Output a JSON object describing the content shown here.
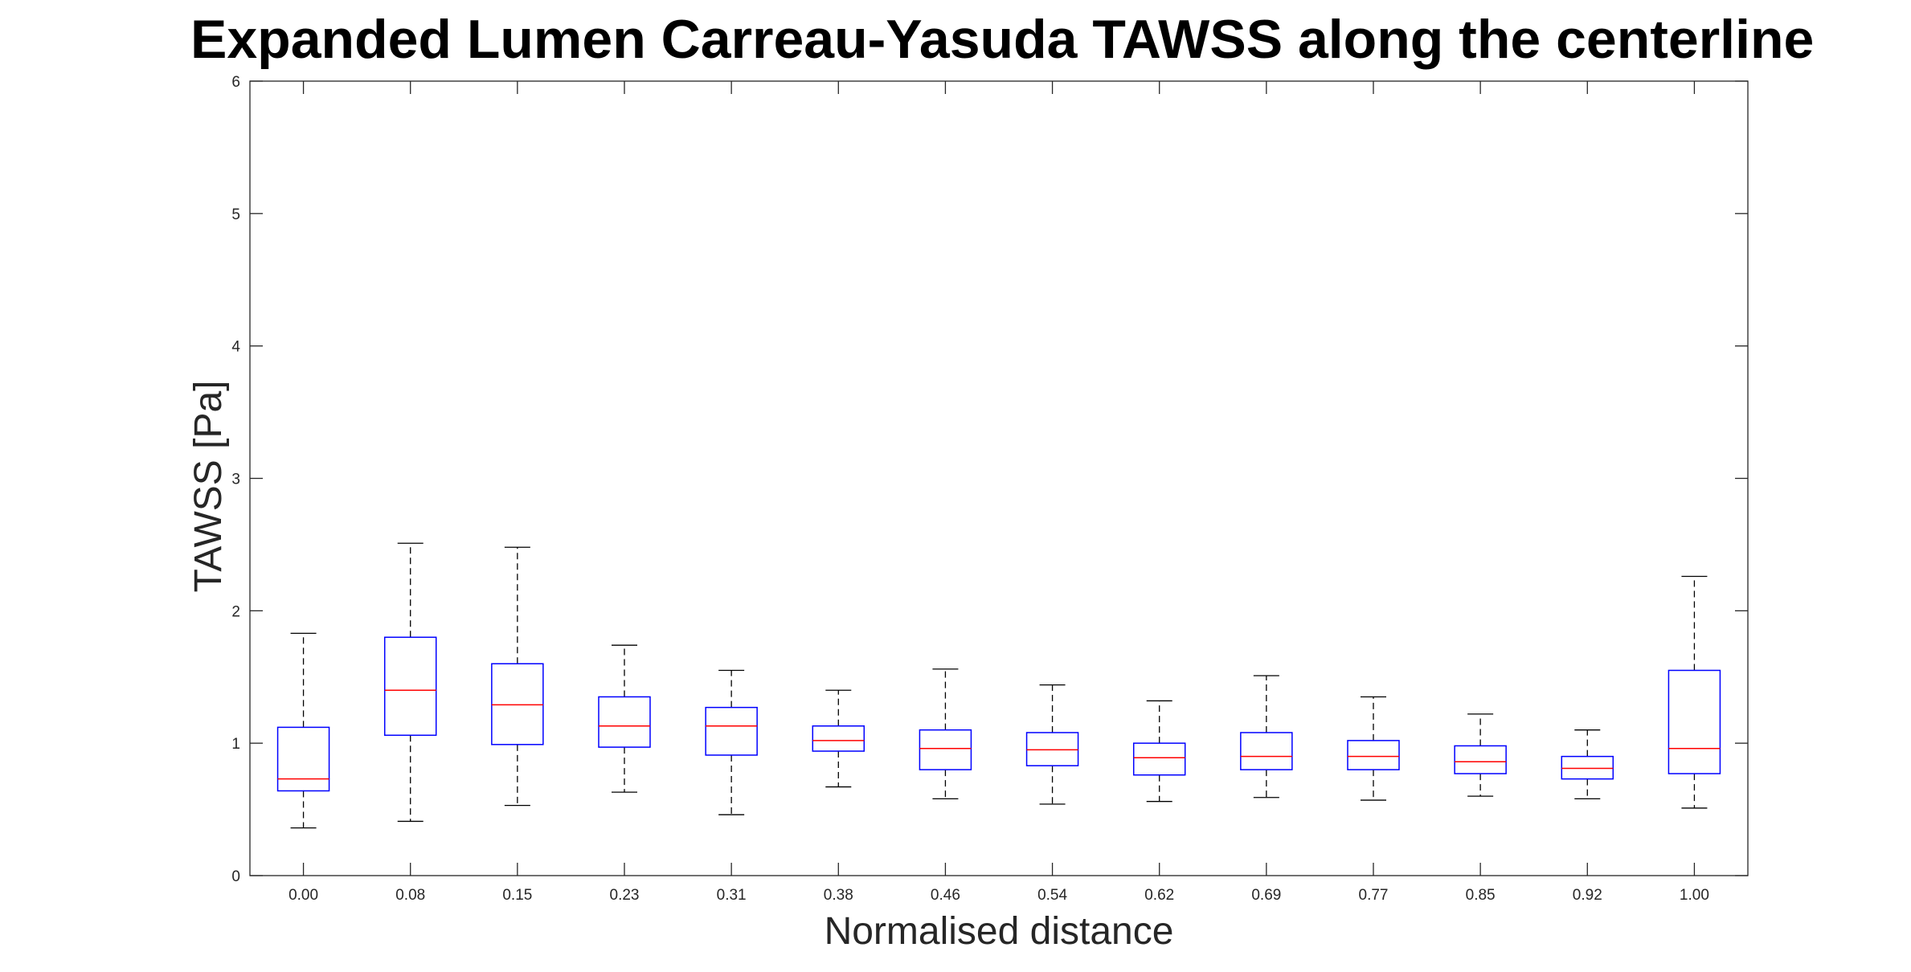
{
  "chart_data": {
    "type": "box",
    "title": "Expanded Lumen Carreau-Yasuda TAWSS along the centerline",
    "xlabel": "Normalised distance",
    "ylabel": "TAWSS [Pa]",
    "ylim": [
      0,
      6
    ],
    "yticks": [
      "0",
      "1",
      "2",
      "3",
      "4",
      "5",
      "6"
    ],
    "categories": [
      "0.00",
      "0.08",
      "0.15",
      "0.23",
      "0.31",
      "0.38",
      "0.46",
      "0.54",
      "0.62",
      "0.69",
      "0.77",
      "0.85",
      "0.92",
      "1.00"
    ],
    "boxes": [
      {
        "min": 0.36,
        "q1": 0.64,
        "median": 0.73,
        "q3": 1.12,
        "max": 1.83
      },
      {
        "min": 0.41,
        "q1": 1.06,
        "median": 1.4,
        "q3": 1.8,
        "max": 2.51
      },
      {
        "min": 0.53,
        "q1": 0.99,
        "median": 1.29,
        "q3": 1.6,
        "max": 2.48
      },
      {
        "min": 0.63,
        "q1": 0.97,
        "median": 1.13,
        "q3": 1.35,
        "max": 1.74
      },
      {
        "min": 0.46,
        "q1": 0.91,
        "median": 1.13,
        "q3": 1.27,
        "max": 1.55
      },
      {
        "min": 0.67,
        "q1": 0.94,
        "median": 1.02,
        "q3": 1.13,
        "max": 1.4
      },
      {
        "min": 0.58,
        "q1": 0.8,
        "median": 0.96,
        "q3": 1.1,
        "max": 1.56
      },
      {
        "min": 0.54,
        "q1": 0.83,
        "median": 0.95,
        "q3": 1.08,
        "max": 1.44
      },
      {
        "min": 0.56,
        "q1": 0.76,
        "median": 0.89,
        "q3": 1.0,
        "max": 1.32
      },
      {
        "min": 0.59,
        "q1": 0.8,
        "median": 0.9,
        "q3": 1.08,
        "max": 1.51
      },
      {
        "min": 0.57,
        "q1": 0.8,
        "median": 0.9,
        "q3": 1.02,
        "max": 1.35
      },
      {
        "min": 0.6,
        "q1": 0.77,
        "median": 0.86,
        "q3": 0.98,
        "max": 1.22
      },
      {
        "min": 0.58,
        "q1": 0.73,
        "median": 0.81,
        "q3": 0.9,
        "max": 1.1
      },
      {
        "min": 0.51,
        "q1": 0.77,
        "median": 0.96,
        "q3": 1.55,
        "max": 2.26
      }
    ],
    "colors": {
      "box": "#0000ff",
      "median": "#ff0000",
      "whisker": "#000000",
      "axis": "#262626"
    },
    "grid": false
  }
}
